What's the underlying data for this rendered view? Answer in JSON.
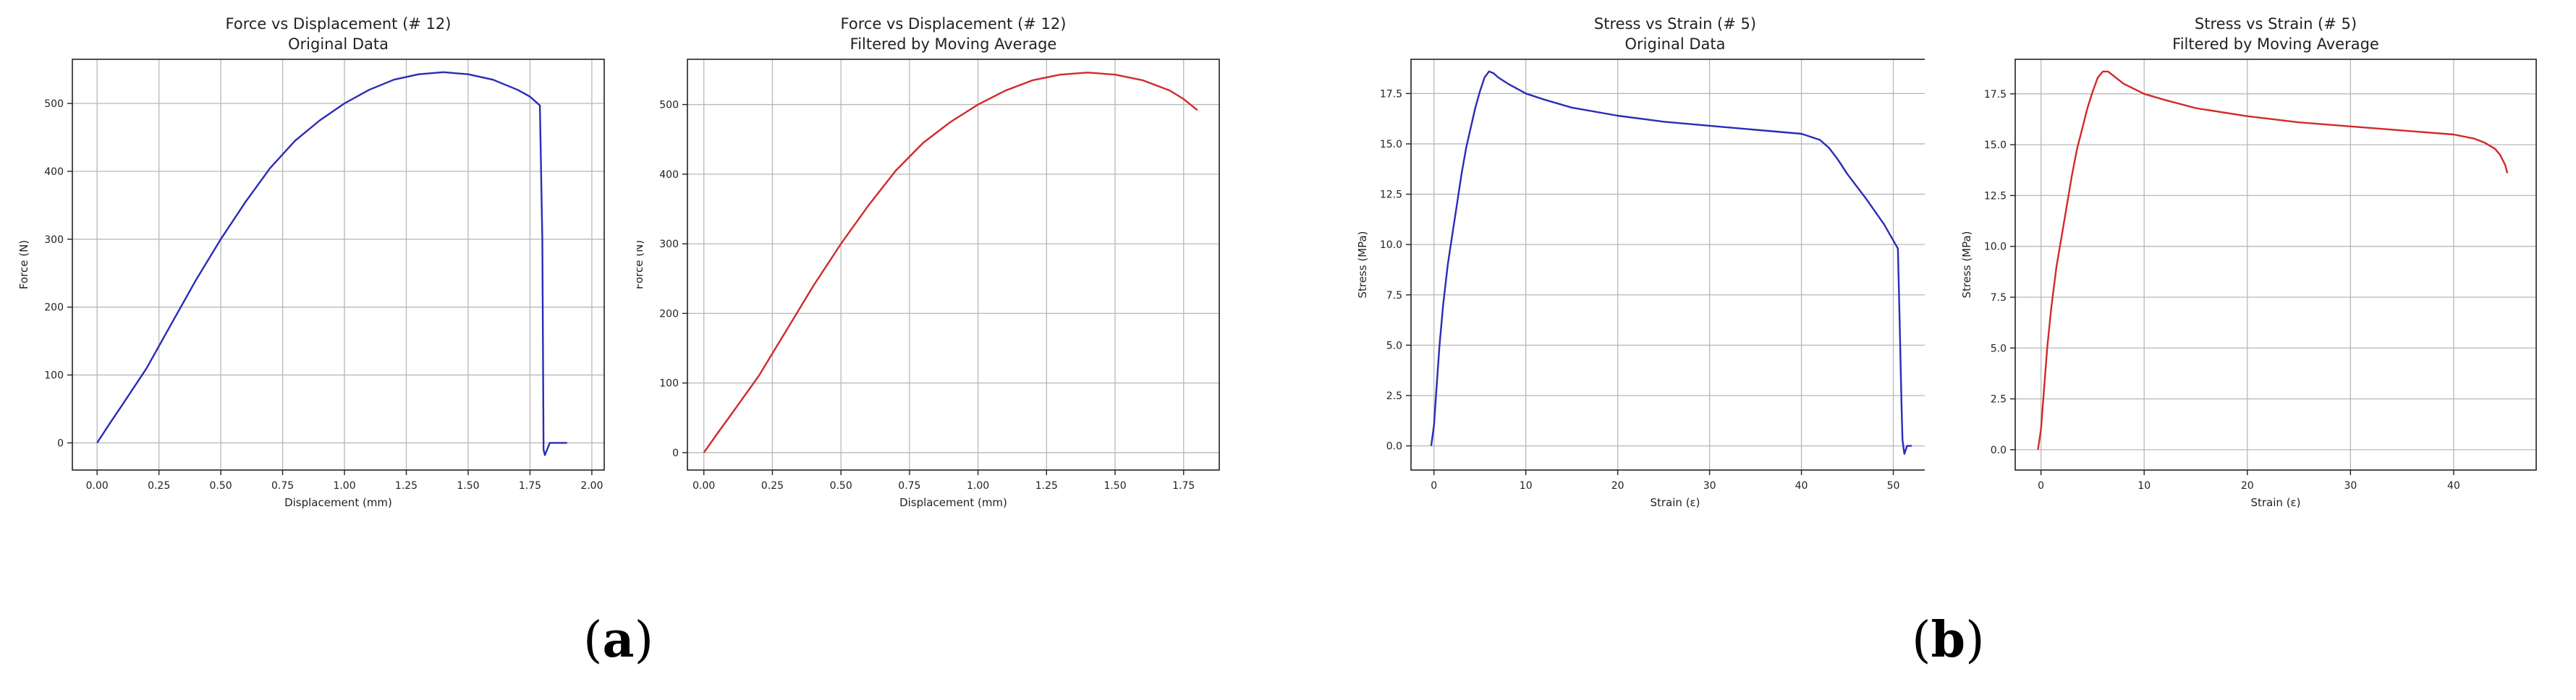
{
  "chart_data": [
    {
      "id": "chart-a1",
      "type": "line",
      "title": "Force vs Displacement (# 12)",
      "subtitle": "Original Data",
      "xlabel": "Displacement (mm)",
      "ylabel": "Force (N)",
      "xlim": [
        -0.1,
        2.05
      ],
      "ylim": [
        -40,
        565
      ],
      "xticks": [
        0.0,
        0.25,
        0.5,
        0.75,
        1.0,
        1.25,
        1.5,
        1.75,
        2.0
      ],
      "xtick_labels": [
        "0.00",
        "0.25",
        "0.50",
        "0.75",
        "1.00",
        "1.25",
        "1.50",
        "1.75",
        "2.00"
      ],
      "yticks": [
        0,
        100,
        200,
        300,
        400,
        500
      ],
      "ytick_labels": [
        "0",
        "100",
        "200",
        "300",
        "400",
        "500"
      ],
      "grid": true,
      "series": [
        {
          "color": "#2b2bb8",
          "x": [
            0.0,
            0.05,
            0.1,
            0.2,
            0.3,
            0.4,
            0.5,
            0.6,
            0.7,
            0.8,
            0.9,
            1.0,
            1.1,
            1.2,
            1.3,
            1.4,
            1.5,
            1.6,
            1.7,
            1.75,
            1.79,
            1.8,
            1.805,
            1.81,
            1.83,
            1.85,
            1.9
          ],
          "y": [
            0,
            28,
            55,
            110,
            175,
            240,
            300,
            355,
            405,
            445,
            475,
            500,
            520,
            535,
            543,
            546,
            543,
            535,
            520,
            510,
            497,
            300,
            -10,
            -18,
            0,
            0,
            0
          ]
        }
      ]
    },
    {
      "id": "chart-a2",
      "type": "line",
      "title": "Force vs Displacement (# 12)",
      "subtitle": "Filtered by Moving Average",
      "xlabel": "Displacement (mm)",
      "ylabel": "Force (N)",
      "xlim": [
        -0.06,
        1.88
      ],
      "ylim": [
        -25,
        565
      ],
      "xticks": [
        0.0,
        0.25,
        0.5,
        0.75,
        1.0,
        1.25,
        1.5,
        1.75
      ],
      "xtick_labels": [
        "0.00",
        "0.25",
        "0.50",
        "0.75",
        "1.00",
        "1.25",
        "1.50",
        "1.75"
      ],
      "yticks": [
        0,
        100,
        200,
        300,
        400,
        500
      ],
      "ytick_labels": [
        "0",
        "100",
        "200",
        "300",
        "400",
        "500"
      ],
      "grid": true,
      "series": [
        {
          "color": "#d22a2a",
          "x": [
            0.0,
            0.05,
            0.1,
            0.2,
            0.3,
            0.4,
            0.5,
            0.6,
            0.7,
            0.8,
            0.9,
            1.0,
            1.1,
            1.2,
            1.3,
            1.4,
            1.5,
            1.6,
            1.7,
            1.75,
            1.8
          ],
          "y": [
            0,
            28,
            55,
            110,
            175,
            240,
            300,
            355,
            405,
            445,
            475,
            500,
            520,
            535,
            543,
            546,
            543,
            535,
            520,
            508,
            492
          ]
        }
      ]
    },
    {
      "id": "chart-b1",
      "type": "line",
      "title": "Stress vs Strain (# 5)",
      "subtitle": "Original Data",
      "xlabel": "Strain (ε)",
      "ylabel": "Stress (MPa)",
      "xlim": [
        -2.5,
        55
      ],
      "ylim": [
        -1.2,
        19.2
      ],
      "xticks": [
        0,
        10,
        20,
        30,
        40,
        50
      ],
      "xtick_labels": [
        "0",
        "10",
        "20",
        "30",
        "40",
        "50"
      ],
      "yticks": [
        0.0,
        2.5,
        5.0,
        7.5,
        10.0,
        12.5,
        15.0,
        17.5
      ],
      "ytick_labels": [
        "0.0",
        "2.5",
        "5.0",
        "7.5",
        "10.0",
        "12.5",
        "15.0",
        "17.5"
      ],
      "grid": true,
      "series": [
        {
          "color": "#2b2bb8",
          "x": [
            -0.3,
            0.0,
            0.3,
            0.6,
            1.0,
            1.5,
            2.0,
            2.5,
            3.0,
            3.5,
            4.0,
            4.5,
            5.0,
            5.5,
            6.0,
            6.5,
            7.0,
            8.0,
            10,
            12,
            15,
            20,
            25,
            30,
            35,
            40,
            42,
            43,
            44,
            45,
            47,
            49,
            50.5,
            50.7,
            50.9,
            51.0,
            51.2,
            51.5,
            52.0
          ],
          "y": [
            0.0,
            1.0,
            3.0,
            5.0,
            7.0,
            9.0,
            10.5,
            12.0,
            13.5,
            14.8,
            15.8,
            16.8,
            17.6,
            18.3,
            18.6,
            18.5,
            18.3,
            18.0,
            17.5,
            17.2,
            16.8,
            16.4,
            16.1,
            15.9,
            15.7,
            15.5,
            15.2,
            14.8,
            14.2,
            13.5,
            12.3,
            11.0,
            9.8,
            6.0,
            2.0,
            0.3,
            -0.4,
            0.0,
            0.0
          ]
        }
      ]
    },
    {
      "id": "chart-b2",
      "type": "line",
      "title": "Stress vs Strain (# 5)",
      "subtitle": "Filtered by Moving Average",
      "xlabel": "Strain (ε)",
      "ylabel": "Stress (MPa)",
      "xlim": [
        -2.5,
        48
      ],
      "ylim": [
        -1.0,
        19.2
      ],
      "xticks": [
        0,
        10,
        20,
        30,
        40
      ],
      "xtick_labels": [
        "0",
        "10",
        "20",
        "30",
        "40"
      ],
      "yticks": [
        0.0,
        2.5,
        5.0,
        7.5,
        10.0,
        12.5,
        15.0,
        17.5
      ],
      "ytick_labels": [
        "0.0",
        "2.5",
        "5.0",
        "7.5",
        "10.0",
        "12.5",
        "15.0",
        "17.5"
      ],
      "grid": true,
      "series": [
        {
          "color": "#d22a2a",
          "x": [
            -0.3,
            0.0,
            0.3,
            0.6,
            1.0,
            1.5,
            2.0,
            2.5,
            3.0,
            3.5,
            4.0,
            4.5,
            5.0,
            5.5,
            6.0,
            6.5,
            7.0,
            8.0,
            10,
            12,
            15,
            20,
            25,
            30,
            35,
            40,
            42,
            43,
            44,
            44.5,
            45.0,
            45.2
          ],
          "y": [
            0.0,
            1.0,
            3.0,
            5.0,
            7.0,
            9.0,
            10.5,
            12.0,
            13.5,
            14.8,
            15.8,
            16.8,
            17.6,
            18.3,
            18.6,
            18.6,
            18.4,
            18.0,
            17.5,
            17.2,
            16.8,
            16.4,
            16.1,
            15.9,
            15.7,
            15.5,
            15.3,
            15.1,
            14.8,
            14.5,
            14.0,
            13.6
          ]
        }
      ]
    }
  ],
  "labels": {
    "a": {
      "open": "(",
      "letter": "a",
      "close": ")"
    },
    "b": {
      "open": "(",
      "letter": "b",
      "close": ")"
    }
  }
}
